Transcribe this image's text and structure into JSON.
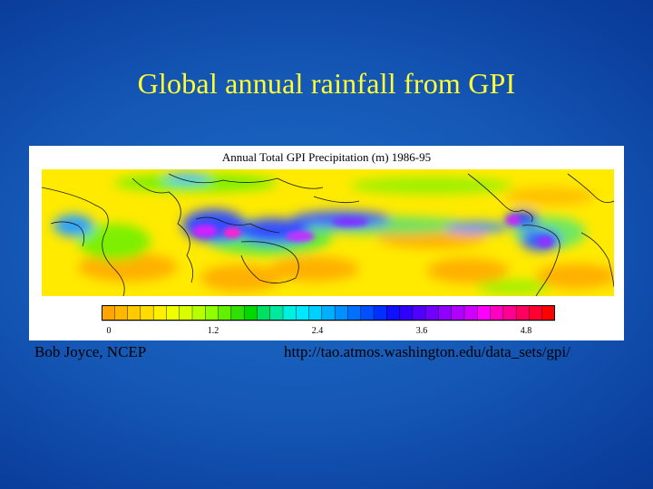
{
  "slide": {
    "title": "Global annual rainfall from GPI",
    "author_credit": "Bob Joyce, NCEP",
    "source_url": "http://tao.atmos.washington.edu/data_sets/gpi/"
  },
  "figure": {
    "title": "Annual Total GPI Precipitation (m) 1986-95",
    "colorbar": {
      "tick_labels": [
        "0",
        "1.2",
        "2.4",
        "3.6",
        "4.8"
      ],
      "colors": [
        "#ffa500",
        "#ffb700",
        "#ffca00",
        "#ffdd00",
        "#fff000",
        "#f0ff00",
        "#d8ff00",
        "#b8ff00",
        "#90ff00",
        "#60f000",
        "#30e000",
        "#00d800",
        "#00e060",
        "#00e8a0",
        "#00f0e0",
        "#00e8ff",
        "#00d0ff",
        "#00b0ff",
        "#0090ff",
        "#0070ff",
        "#0050ff",
        "#0030ff",
        "#1010ff",
        "#3000ff",
        "#5000ff",
        "#7000ff",
        "#9000ff",
        "#b000ff",
        "#d000ff",
        "#ff00ff",
        "#ff00c0",
        "#ff0090",
        "#ff0060",
        "#ff0030",
        "#ff0000"
      ]
    }
  }
}
